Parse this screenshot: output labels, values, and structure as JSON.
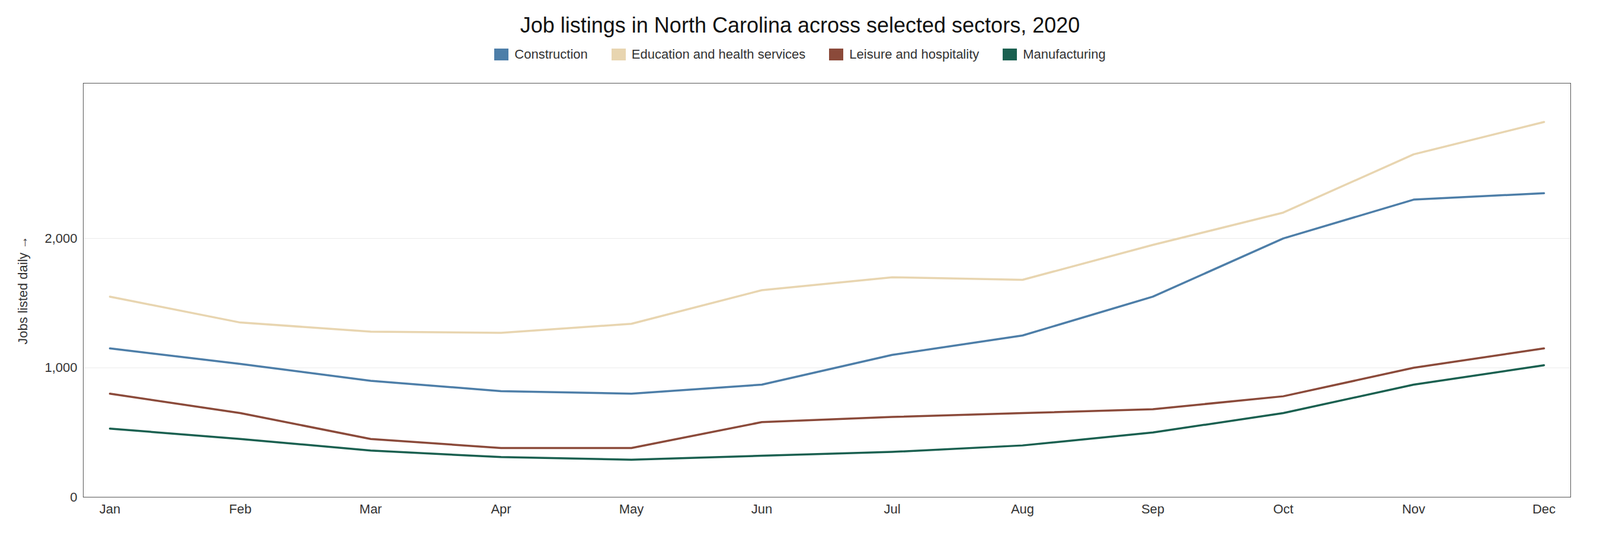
{
  "chart_data": {
    "type": "line",
    "title": "Job listings in North Carolina across selected sectors, 2020",
    "ylabel": "Jobs listed daily",
    "categories": [
      "Jan",
      "Feb",
      "Mar",
      "Apr",
      "May",
      "Jun",
      "Jul",
      "Aug",
      "Sep",
      "Oct",
      "Nov",
      "Dec"
    ],
    "series": [
      {
        "name": "Construction",
        "color": "#4d7ea8",
        "values": [
          1150,
          1030,
          900,
          820,
          800,
          870,
          1100,
          1250,
          1550,
          2000,
          2300,
          2350
        ]
      },
      {
        "name": "Education and health services",
        "color": "#e8d5b0",
        "values": [
          1550,
          1350,
          1280,
          1270,
          1340,
          1600,
          1700,
          1680,
          1950,
          2200,
          2650,
          2900
        ]
      },
      {
        "name": "Leisure and hospitality",
        "color": "#8b4a3a",
        "values": [
          800,
          650,
          450,
          380,
          380,
          580,
          620,
          650,
          680,
          780,
          1000,
          1150
        ]
      },
      {
        "name": "Manufacturing",
        "color": "#1a6050",
        "values": [
          530,
          450,
          360,
          310,
          290,
          320,
          350,
          400,
          500,
          650,
          870,
          1020
        ]
      }
    ],
    "ylim": [
      0,
      3200
    ],
    "yticks": [
      0,
      {
        "value": 1000,
        "label": "1,000"
      },
      {
        "value": 2000,
        "label": "2,000"
      }
    ],
    "grid": true,
    "legend": "top"
  }
}
